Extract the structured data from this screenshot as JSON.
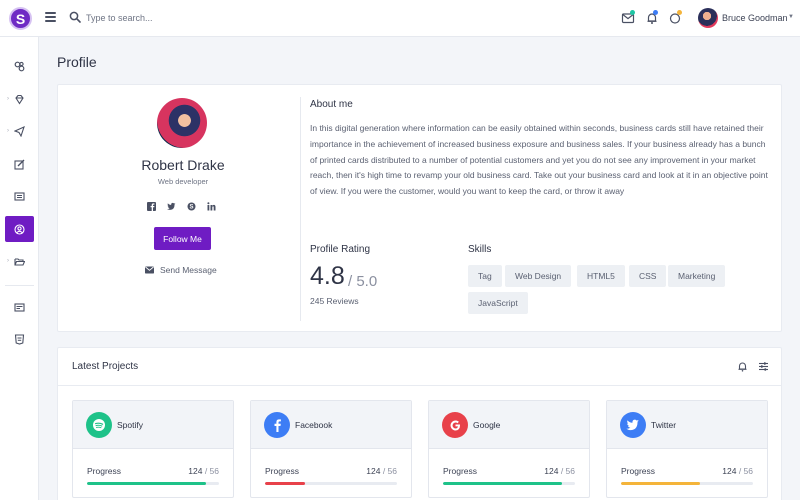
{
  "header": {
    "logo_letter": "S",
    "search_placeholder": "Type to search...",
    "user_name": "Bruce Goodman",
    "notification_dot_colors": {
      "mail": "#1fc6a5",
      "bell": "#3d7df5",
      "circle": "#f4b43a"
    }
  },
  "sidebar": {
    "icons": [
      "dashboard-icon",
      "diamond-icon",
      "paper-plane-icon",
      "edit-icon",
      "table-icon",
      "user-circle-icon",
      "folder-open-icon",
      "card-icon",
      "html5-icon"
    ],
    "active": "user-circle-icon"
  },
  "page": {
    "title": "Profile"
  },
  "profile": {
    "name": "Robert Drake",
    "role": "Web developer",
    "social_icons": [
      "facebook-icon",
      "twitter-icon",
      "skype-icon",
      "linkedin-icon"
    ],
    "follow_label": "Follow Me",
    "send_message_label": "Send Message",
    "about_title": "About me",
    "about_text": "In this digital generation where information can be easily obtained within seconds, business cards still have retained their importance in the achievement of increased business exposure and business sales. If your business already has a bunch of printed cards distributed to a number of potential customers and yet you do not see any improvement in your market reach, then it's high time to revamp your old business card. Take out your business card and look at it in an objective point of view. If you were the customer, would you want to keep the card, or throw it away",
    "rating_title": "Profile Rating",
    "rating_value": "4.8",
    "rating_max": "/ 5.0",
    "reviews": "245 Reviews",
    "skills_title": "Skills",
    "skills": [
      "Tag",
      "Web Design",
      "HTML5",
      "CSS",
      "Marketing",
      "JavaScript"
    ]
  },
  "projects": {
    "title": "Latest Projects",
    "progress_label": "Progress",
    "items": [
      {
        "name": "Spotify",
        "done": "124",
        "total": "/ 56",
        "progress": 0.9,
        "color": "#1ec289",
        "icon": "spotify-icon"
      },
      {
        "name": "Facebook",
        "done": "124",
        "total": "/ 56",
        "progress": 0.3,
        "color": "#e8414a",
        "icon": "facebook-icon"
      },
      {
        "name": "Google",
        "done": "124",
        "total": "/ 56",
        "progress": 0.9,
        "color": "#1ec289",
        "icon": "google-icon"
      },
      {
        "name": "Twitter",
        "done": "124",
        "total": "/ 56",
        "progress": 0.6,
        "color": "#f4b43a",
        "icon": "twitter-icon"
      }
    ],
    "logo_colors": {
      "spotify": "#1ec289",
      "facebook": "#3d7df5",
      "google": "#e8414a",
      "twitter": "#3d7df5"
    }
  }
}
